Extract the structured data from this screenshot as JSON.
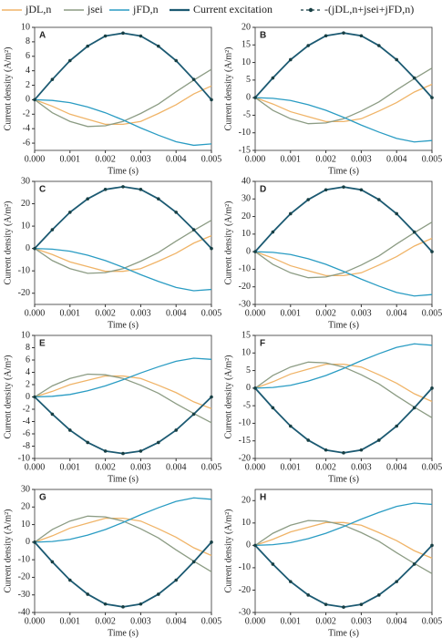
{
  "legend": [
    {
      "name": "jDL,n",
      "color": "#f0b468"
    },
    {
      "name": "jsei",
      "color": "#8c9c84"
    },
    {
      "name": "jFD,n",
      "color": "#2a9cc3"
    },
    {
      "name": "Current excitation",
      "color": "#1c5a72"
    },
    {
      "name": "-(jDL,n+jsei+jFD,n)",
      "color": "#173f44"
    }
  ],
  "chart_data": [
    {
      "type": "line",
      "panel": "A",
      "x_label": "Time (s)",
      "y_label": "Current density (A/m²)",
      "x": [
        0,
        0.0005,
        0.001,
        0.0015,
        0.002,
        0.0025,
        0.003,
        0.0035,
        0.004,
        0.0045,
        0.005
      ],
      "xlim": [
        0,
        0.005
      ],
      "xticks": [
        {
          "value": 0,
          "label": "0.000"
        },
        {
          "value": 0.001,
          "label": "0.001"
        },
        {
          "value": 0.002,
          "label": "0.002"
        },
        {
          "value": 0.003,
          "label": "0.003"
        },
        {
          "value": 0.004,
          "label": "0.004"
        },
        {
          "value": 0.005,
          "label": "0.005"
        }
      ],
      "ylim": [
        -7,
        10
      ],
      "yticks": [
        -6,
        -4,
        -2,
        0,
        2,
        4,
        6,
        8,
        10
      ],
      "series": [
        {
          "values": [
            0,
            -0.9,
            -2.0,
            -2.7,
            -3.4,
            -3.4,
            -3.0,
            -1.9,
            -0.7,
            0.8,
            1.9
          ]
        },
        {
          "values": [
            0,
            -1.8,
            -3.0,
            -3.7,
            -3.6,
            -3.0,
            -1.9,
            -0.6,
            1.1,
            2.7,
            4.2
          ]
        },
        {
          "values": [
            0,
            -0.1,
            -0.4,
            -1.0,
            -1.8,
            -2.8,
            -3.9,
            -4.9,
            -5.8,
            -6.3,
            -6.1
          ]
        },
        {
          "values": [
            0,
            2.8,
            5.4,
            7.4,
            8.8,
            9.2,
            8.8,
            7.4,
            5.4,
            2.8,
            0
          ]
        }
      ]
    },
    {
      "type": "line",
      "panel": "B",
      "x_label": "Time (s)",
      "y_label": "Current density (A/m²)",
      "x": [
        0,
        0.0005,
        0.001,
        0.0015,
        0.002,
        0.0025,
        0.003,
        0.0035,
        0.004,
        0.0045,
        0.005
      ],
      "xlim": [
        0,
        0.005
      ],
      "xticks": [
        {
          "value": 0,
          "label": "0.000"
        },
        {
          "value": 0.001,
          "label": "0.001"
        },
        {
          "value": 0.002,
          "label": "0.002"
        },
        {
          "value": 0.003,
          "label": "0.003"
        },
        {
          "value": 0.004,
          "label": "0.004"
        },
        {
          "value": 0.005,
          "label": "0.005"
        }
      ],
      "ylim": [
        -15,
        20
      ],
      "yticks": [
        -15,
        -10,
        -5,
        0,
        5,
        10,
        15,
        20
      ],
      "series": [
        {
          "values": [
            0,
            -1.8,
            -4,
            -5.4,
            -6.8,
            -6.8,
            -6,
            -3.8,
            -1.4,
            1.6,
            3.8
          ]
        },
        {
          "values": [
            0,
            -3.6,
            -6,
            -7.4,
            -7.2,
            -6,
            -3.8,
            -1.2,
            2.2,
            5.4,
            8.4
          ]
        },
        {
          "values": [
            0,
            -0.2,
            -0.8,
            -2,
            -3.6,
            -5.6,
            -7.8,
            -9.8,
            -11.6,
            -12.6,
            -12.2
          ]
        },
        {
          "values": [
            0,
            5.6,
            10.8,
            14.8,
            17.6,
            18.4,
            17.6,
            14.8,
            10.8,
            5.6,
            0
          ]
        }
      ]
    },
    {
      "type": "line",
      "panel": "C",
      "x_label": "Time (s)",
      "y_label": "Current density (A/m²)",
      "x": [
        0,
        0.0005,
        0.001,
        0.0015,
        0.002,
        0.0025,
        0.003,
        0.0035,
        0.004,
        0.0045,
        0.005
      ],
      "xlim": [
        0,
        0.005
      ],
      "xticks": [
        {
          "value": 0,
          "label": "0.000"
        },
        {
          "value": 0.001,
          "label": "0.001"
        },
        {
          "value": 0.002,
          "label": "0.002"
        },
        {
          "value": 0.003,
          "label": "0.003"
        },
        {
          "value": 0.004,
          "label": "0.004"
        },
        {
          "value": 0.005,
          "label": "0.005"
        }
      ],
      "ylim": [
        -25,
        30
      ],
      "yticks": [
        -20,
        -10,
        0,
        10,
        20,
        30
      ],
      "series": [
        {
          "values": [
            0,
            -2.7,
            -6,
            -8.1,
            -10.2,
            -10.2,
            -9,
            -5.7,
            -2.1,
            2.4,
            5.7
          ]
        },
        {
          "values": [
            0,
            -5.4,
            -9,
            -11.1,
            -10.8,
            -9,
            -5.7,
            -1.8,
            3.3,
            8.1,
            12.6
          ]
        },
        {
          "values": [
            0,
            -0.3,
            -1.2,
            -3,
            -5.4,
            -8.4,
            -11.7,
            -14.7,
            -17.4,
            -18.9,
            -18.3
          ]
        },
        {
          "values": [
            0,
            8.4,
            16.2,
            22.2,
            26.4,
            27.6,
            26.4,
            22.2,
            16.2,
            8.4,
            0
          ]
        }
      ]
    },
    {
      "type": "line",
      "panel": "D",
      "x_label": "Time (s)",
      "y_label": "Current density (A/m²)",
      "x": [
        0,
        0.0005,
        0.001,
        0.0015,
        0.002,
        0.0025,
        0.003,
        0.0035,
        0.004,
        0.0045,
        0.005
      ],
      "xlim": [
        0,
        0.005
      ],
      "xticks": [
        {
          "value": 0,
          "label": "0.000"
        },
        {
          "value": 0.001,
          "label": "0.001"
        },
        {
          "value": 0.002,
          "label": "0.002"
        },
        {
          "value": 0.003,
          "label": "0.003"
        },
        {
          "value": 0.004,
          "label": "0.004"
        },
        {
          "value": 0.005,
          "label": "0.005"
        }
      ],
      "ylim": [
        -30,
        40
      ],
      "yticks": [
        -30,
        -20,
        -10,
        0,
        10,
        20,
        30,
        40
      ],
      "series": [
        {
          "values": [
            0,
            -3.6,
            -8,
            -10.8,
            -13.6,
            -13.6,
            -12,
            -7.6,
            -2.8,
            3.2,
            7.6
          ]
        },
        {
          "values": [
            0,
            -7.2,
            -12,
            -14.8,
            -14.4,
            -12,
            -7.6,
            -2.4,
            4.4,
            10.8,
            16.8
          ]
        },
        {
          "values": [
            0,
            -0.4,
            -1.6,
            -4,
            -7.2,
            -11.2,
            -15.6,
            -19.6,
            -23.2,
            -25.2,
            -24.4
          ]
        },
        {
          "values": [
            0,
            11.2,
            21.6,
            29.6,
            35.2,
            36.8,
            35.2,
            29.6,
            21.6,
            11.2,
            0
          ]
        }
      ]
    },
    {
      "type": "line",
      "panel": "E",
      "x_label": "Time (s)",
      "y_label": "Current density (A/m²)",
      "x": [
        0,
        0.0005,
        0.001,
        0.0015,
        0.002,
        0.0025,
        0.003,
        0.0035,
        0.004,
        0.0045,
        0.005
      ],
      "xlim": [
        0,
        0.005
      ],
      "xticks": [
        {
          "value": 0,
          "label": "0.000"
        },
        {
          "value": 0.001,
          "label": "0.001"
        },
        {
          "value": 0.002,
          "label": "0.002"
        },
        {
          "value": 0.003,
          "label": "0.003"
        },
        {
          "value": 0.004,
          "label": "0.004"
        },
        {
          "value": 0.005,
          "label": "0.005"
        }
      ],
      "ylim": [
        -10,
        10
      ],
      "yticks": [
        -10,
        -8,
        -6,
        -4,
        -2,
        0,
        2,
        4,
        6,
        8,
        10
      ],
      "series": [
        {
          "values": [
            0,
            0.9,
            2.0,
            2.7,
            3.4,
            3.4,
            3.0,
            1.9,
            0.7,
            -0.8,
            -1.9
          ]
        },
        {
          "values": [
            0,
            1.8,
            3.0,
            3.7,
            3.6,
            3.0,
            1.9,
            0.6,
            -1.1,
            -2.7,
            -4.2
          ]
        },
        {
          "values": [
            0,
            0.1,
            0.4,
            1.0,
            1.8,
            2.8,
            3.9,
            4.9,
            5.8,
            6.3,
            6.1
          ]
        },
        {
          "values": [
            0,
            -2.8,
            -5.4,
            -7.4,
            -8.8,
            -9.2,
            -8.8,
            -7.4,
            -5.4,
            -2.8,
            0
          ]
        }
      ]
    },
    {
      "type": "line",
      "panel": "F",
      "x_label": "Time (s)",
      "y_label": "Current density (A/m²)",
      "x": [
        0,
        0.0005,
        0.001,
        0.0015,
        0.002,
        0.0025,
        0.003,
        0.0035,
        0.004,
        0.0045,
        0.005
      ],
      "xlim": [
        0,
        0.005
      ],
      "xticks": [
        {
          "value": 0,
          "label": "0.000"
        },
        {
          "value": 0.001,
          "label": "0.001"
        },
        {
          "value": 0.002,
          "label": "0.002"
        },
        {
          "value": 0.003,
          "label": "0.003"
        },
        {
          "value": 0.004,
          "label": "0.004"
        },
        {
          "value": 0.005,
          "label": "0.005"
        }
      ],
      "ylim": [
        -20,
        15
      ],
      "yticks": [
        -20,
        -15,
        -10,
        -5,
        0,
        5,
        10,
        15
      ],
      "series": [
        {
          "values": [
            0,
            1.8,
            4,
            5.4,
            6.8,
            6.8,
            6,
            3.8,
            1.4,
            -1.6,
            -3.8
          ]
        },
        {
          "values": [
            0,
            3.6,
            6,
            7.4,
            7.2,
            6,
            3.8,
            1.2,
            -2.2,
            -5.4,
            -8.4
          ]
        },
        {
          "values": [
            0,
            0.2,
            0.8,
            2,
            3.6,
            5.6,
            7.8,
            9.8,
            11.6,
            12.6,
            12.2
          ]
        },
        {
          "values": [
            0,
            -5.6,
            -10.8,
            -14.8,
            -17.6,
            -18.4,
            -17.6,
            -14.8,
            -10.8,
            -5.6,
            0
          ]
        }
      ]
    },
    {
      "type": "line",
      "panel": "G",
      "x_label": "Time (s)",
      "y_label": "Current density (A/m²)",
      "x": [
        0,
        0.0005,
        0.001,
        0.0015,
        0.002,
        0.0025,
        0.003,
        0.0035,
        0.004,
        0.0045,
        0.005
      ],
      "xlim": [
        0,
        0.005
      ],
      "xticks": [
        {
          "value": 0,
          "label": "0.000"
        },
        {
          "value": 0.001,
          "label": "0.001"
        },
        {
          "value": 0.002,
          "label": "0.002"
        },
        {
          "value": 0.003,
          "label": "0.003"
        },
        {
          "value": 0.004,
          "label": "0.004"
        },
        {
          "value": 0.005,
          "label": "0.005"
        }
      ],
      "ylim": [
        -40,
        30
      ],
      "yticks": [
        -40,
        -30,
        -20,
        -10,
        0,
        10,
        20,
        30
      ],
      "series": [
        {
          "values": [
            0,
            3.6,
            8,
            10.8,
            13.6,
            13.6,
            12,
            7.6,
            2.8,
            -3.2,
            -7.6
          ]
        },
        {
          "values": [
            0,
            7.2,
            12,
            14.8,
            14.4,
            12,
            7.6,
            2.4,
            -4.4,
            -10.8,
            -16.8
          ]
        },
        {
          "values": [
            0,
            0.4,
            1.6,
            4,
            7.2,
            11.2,
            15.6,
            19.6,
            23.2,
            25.2,
            24.4
          ]
        },
        {
          "values": [
            0,
            -11.2,
            -21.6,
            -29.6,
            -35.2,
            -36.8,
            -35.2,
            -29.6,
            -21.6,
            -11.2,
            0
          ]
        }
      ]
    },
    {
      "type": "line",
      "panel": "H",
      "x_label": "Time (s)",
      "y_label": "Current density (A/m²)",
      "x": [
        0,
        0.0005,
        0.001,
        0.0015,
        0.002,
        0.0025,
        0.003,
        0.0035,
        0.004,
        0.0045,
        0.005
      ],
      "xlim": [
        0,
        0.005
      ],
      "xticks": [
        {
          "value": 0,
          "label": "0.000"
        },
        {
          "value": 0.001,
          "label": "0.001"
        },
        {
          "value": 0.002,
          "label": "0.002"
        },
        {
          "value": 0.003,
          "label": "0.003"
        },
        {
          "value": 0.004,
          "label": "0.004"
        },
        {
          "value": 0.005,
          "label": "0.005"
        }
      ],
      "ylim": [
        -30,
        25
      ],
      "yticks": [
        -30,
        -20,
        -10,
        0,
        10,
        20
      ],
      "series": [
        {
          "values": [
            0,
            2.7,
            6,
            8.1,
            10.2,
            10.2,
            9,
            5.7,
            2.1,
            -2.4,
            -5.7
          ]
        },
        {
          "values": [
            0,
            5.4,
            9,
            11.1,
            10.8,
            9,
            5.7,
            1.8,
            -3.3,
            -8.1,
            -12.6
          ]
        },
        {
          "values": [
            0,
            0.3,
            1.2,
            3,
            5.4,
            8.4,
            11.7,
            14.7,
            17.4,
            18.9,
            18.3
          ]
        },
        {
          "values": [
            0,
            -8.4,
            -16.2,
            -22.2,
            -26.4,
            -27.6,
            -26.4,
            -22.2,
            -16.2,
            -8.4,
            0
          ]
        }
      ]
    }
  ]
}
